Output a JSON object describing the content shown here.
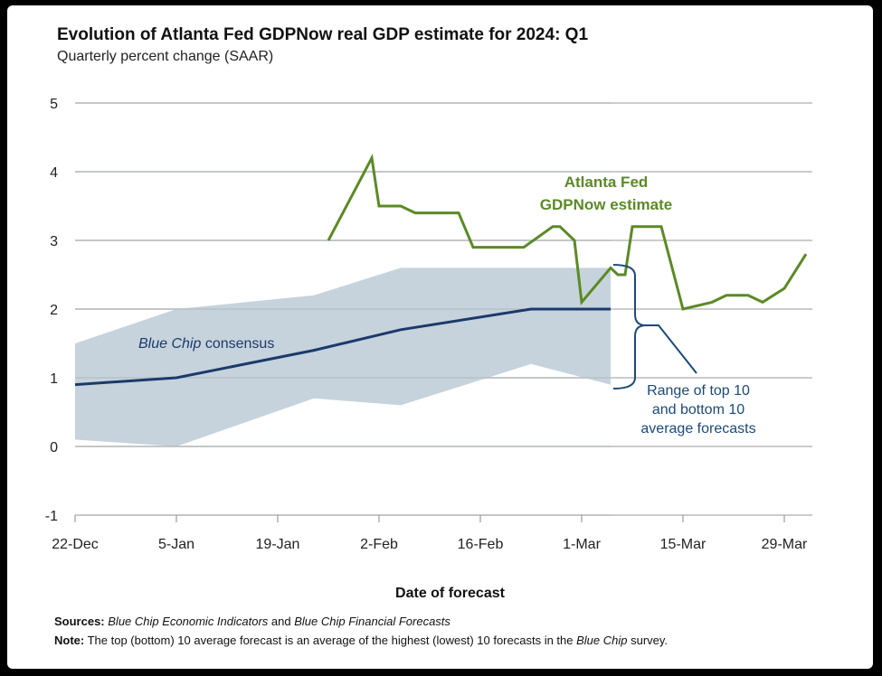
{
  "chart_data": {
    "type": "line",
    "title": "Evolution of Atlanta Fed GDPNow real GDP estimate for 2024: Q1",
    "subtitle": "Quarterly percent change (SAAR)",
    "xlabel": "Date of forecast",
    "ylabel": "",
    "ylim": [
      -1,
      5
    ],
    "yticks": [
      "5",
      "4",
      "3",
      "2",
      "1",
      "0",
      "-1"
    ],
    "xlim": [
      "2023-12-22",
      "2024-04-02"
    ],
    "xticks": [
      {
        "date": "2023-12-22",
        "label": "22-Dec"
      },
      {
        "date": "2024-01-05",
        "label": "5-Jan"
      },
      {
        "date": "2024-01-19",
        "label": "19-Jan"
      },
      {
        "date": "2024-02-02",
        "label": "2-Feb"
      },
      {
        "date": "2024-02-16",
        "label": "16-Feb"
      },
      {
        "date": "2024-03-01",
        "label": "1-Mar"
      },
      {
        "date": "2024-03-15",
        "label": "15-Mar"
      },
      {
        "date": "2024-03-29",
        "label": "29-Mar"
      }
    ],
    "grid": true,
    "series": [
      {
        "name": "Atlanta Fed GDPNow estimate",
        "color": "#5b8a25",
        "points": [
          [
            "2024-01-26",
            3.0
          ],
          [
            "2024-02-01",
            4.2
          ],
          [
            "2024-02-02",
            3.5
          ],
          [
            "2024-02-05",
            3.5
          ],
          [
            "2024-02-07",
            3.4
          ],
          [
            "2024-02-13",
            3.4
          ],
          [
            "2024-02-15",
            2.9
          ],
          [
            "2024-02-22",
            2.9
          ],
          [
            "2024-02-26",
            3.2
          ],
          [
            "2024-02-27",
            3.2
          ],
          [
            "2024-02-29",
            3.0
          ],
          [
            "2024-03-01",
            2.1
          ],
          [
            "2024-03-05",
            2.6
          ],
          [
            "2024-03-06",
            2.5
          ],
          [
            "2024-03-07",
            2.5
          ],
          [
            "2024-03-08",
            3.2
          ],
          [
            "2024-03-12",
            3.2
          ],
          [
            "2024-03-15",
            2.0
          ],
          [
            "2024-03-19",
            2.1
          ],
          [
            "2024-03-21",
            2.2
          ],
          [
            "2024-03-24",
            2.2
          ],
          [
            "2024-03-26",
            2.1
          ],
          [
            "2024-03-29",
            2.3
          ],
          [
            "2024-04-01",
            2.8
          ]
        ]
      },
      {
        "name": "Blue Chip consensus",
        "color": "#1b3a6b",
        "points": [
          [
            "2023-12-22",
            0.9
          ],
          [
            "2024-01-05",
            1.0
          ],
          [
            "2024-01-24",
            1.4
          ],
          [
            "2024-02-05",
            1.7
          ],
          [
            "2024-02-23",
            2.0
          ],
          [
            "2024-03-05",
            2.0
          ]
        ]
      }
    ],
    "band": {
      "name": "Range of top 10 and bottom 10 average forecasts",
      "color": "#c3d1da",
      "points": [
        [
          "2023-12-22",
          0.1,
          1.5
        ],
        [
          "2024-01-05",
          0.0,
          2.0
        ],
        [
          "2024-01-24",
          0.7,
          2.2
        ],
        [
          "2024-02-05",
          0.6,
          2.6
        ],
        [
          "2024-02-23",
          1.2,
          2.6
        ],
        [
          "2024-03-05",
          0.9,
          2.6
        ]
      ]
    },
    "annotations": {
      "gdpnow": [
        "Atlanta Fed",
        "GDPNow estimate"
      ],
      "consensus_italic": "Blue Chip",
      "consensus_rest": " consensus",
      "range": [
        "Range of top 10",
        "and bottom 10",
        "average forecasts"
      ]
    }
  },
  "footer": {
    "sources_label": "Sources:",
    "sources_1": "Blue Chip Economic Indicators",
    "sources_2": " and ",
    "sources_3": "Blue Chip Financial Forecasts",
    "note_label": "Note:",
    "note_1": " The top (bottom) 10 average forecast is an average of the highest (lowest) 10 forecasts in the ",
    "note_2": "Blue Chip",
    "note_3": " survey."
  }
}
